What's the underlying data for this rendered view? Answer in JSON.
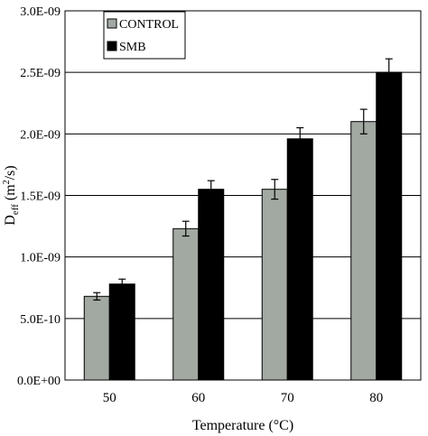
{
  "chart_data": {
    "type": "bar",
    "categories": [
      "50",
      "60",
      "70",
      "80"
    ],
    "series": [
      {
        "name": "CONTROL",
        "color": "#a2a8a2",
        "values": [
          6.8e-10,
          1.23e-09,
          1.55e-09,
          2.1e-09
        ],
        "errors": [
          3e-11,
          6e-11,
          8e-11,
          1e-10
        ]
      },
      {
        "name": "SMB",
        "color": "#000000",
        "values": [
          7.8e-10,
          1.55e-09,
          1.96e-09,
          2.5e-09
        ],
        "errors": [
          4e-11,
          7e-11,
          9e-11,
          1.1e-10
        ]
      }
    ],
    "ylim": [
      0,
      3e-09
    ],
    "y_ticks": [
      {
        "value": 0,
        "label": "0.0E+00"
      },
      {
        "value": 5e-10,
        "label": "5.0E-10"
      },
      {
        "value": 1e-09,
        "label": "1.0E-09"
      },
      {
        "value": 1.5e-09,
        "label": "1.5E-09"
      },
      {
        "value": 2e-09,
        "label": "2.0E-09"
      },
      {
        "value": 2.5e-09,
        "label": "2.5E-09"
      },
      {
        "value": 3e-09,
        "label": "3.0E-09"
      }
    ],
    "xlabel": "Temperature (°C)",
    "ylabel": {
      "main": "D",
      "sub": "eff",
      "units_pre": " (m",
      "units_sup": "2",
      "units_post": "/s)"
    },
    "grid": true,
    "legend_position": "top-left"
  }
}
